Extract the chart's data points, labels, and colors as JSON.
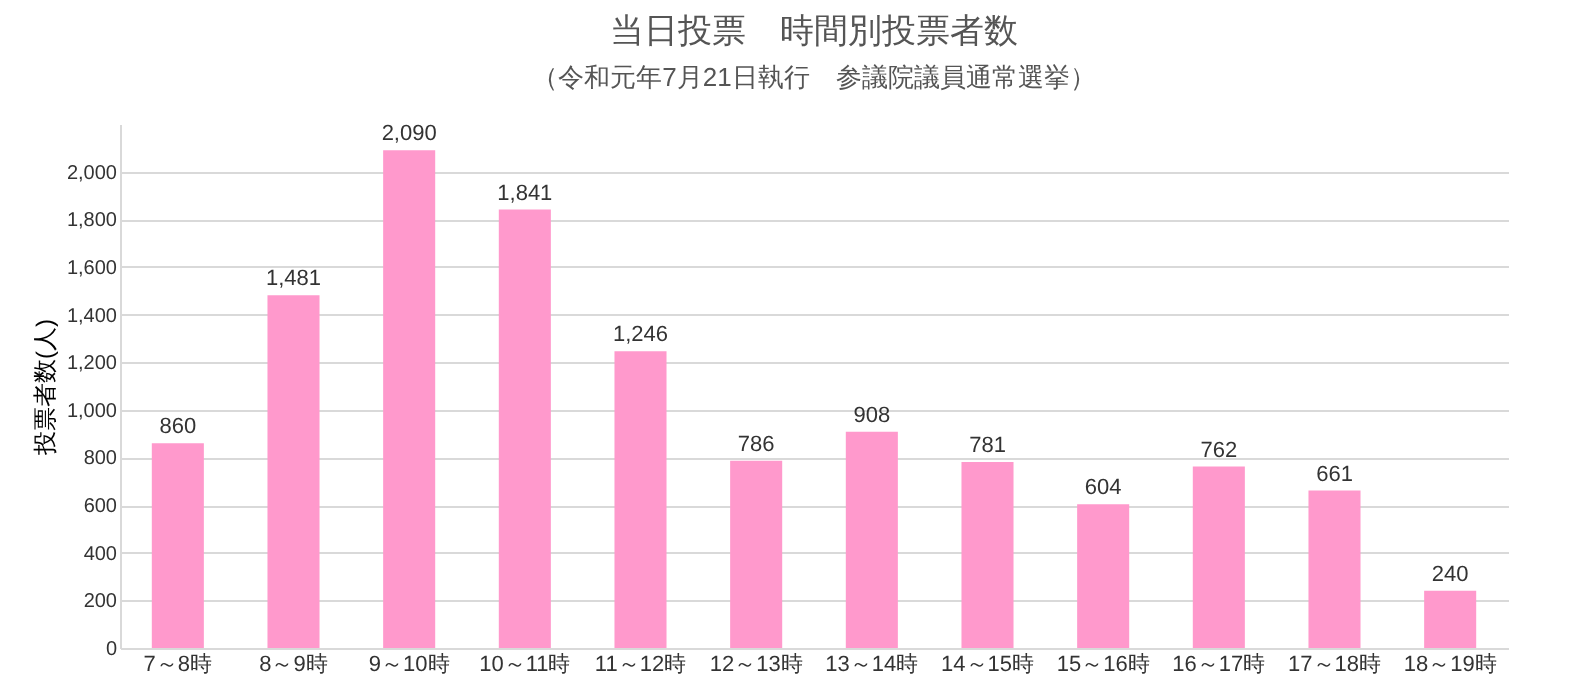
{
  "chart_data": {
    "type": "bar",
    "title": "当日投票　時間別投票者数",
    "subtitle": "（令和元年7月21日執行　参議院議員通常選挙）",
    "ylabel": "投票者数(人)",
    "categories": [
      "7～8時",
      "8～9時",
      "9～10時",
      "10～11時",
      "11～12時",
      "12～13時",
      "13～14時",
      "14～15時",
      "15～16時",
      "16～17時",
      "17～18時",
      "18～19時"
    ],
    "values": [
      860,
      1481,
      2090,
      1841,
      1246,
      786,
      908,
      781,
      604,
      762,
      661,
      240
    ],
    "value_labels": [
      "860",
      "1,481",
      "2,090",
      "1,841",
      "1,246",
      "786",
      "908",
      "781",
      "604",
      "762",
      "661",
      "240"
    ],
    "color": "#ff99cc",
    "ylim": [
      0,
      2200
    ],
    "yticks": [
      0,
      200,
      400,
      600,
      800,
      {
        "value": 1000,
        "label": "1,000"
      },
      {
        "value": 1200,
        "label": "1,200"
      },
      {
        "value": 1400,
        "label": "1,400"
      },
      {
        "value": 1600,
        "label": "1,600"
      },
      {
        "value": 1800,
        "label": "1,800"
      },
      {
        "value": 2000,
        "label": "2,000"
      }
    ],
    "grid": "y"
  }
}
